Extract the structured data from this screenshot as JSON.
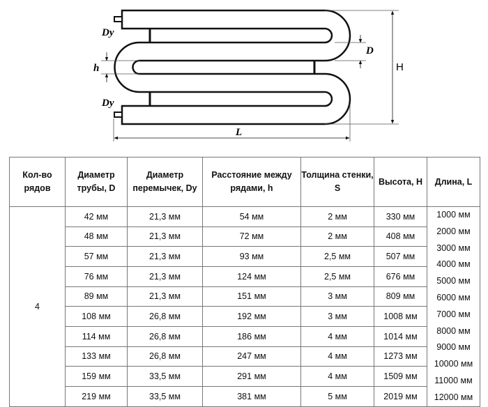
{
  "diagram": {
    "labels": {
      "dy_top": "Dy",
      "dy_bottom": "Dy",
      "h": "h",
      "d": "D",
      "height": "H",
      "length": "L"
    }
  },
  "table": {
    "headers": [
      "Кол-во рядов",
      "Диаметр трубы, D",
      "Диаметр перемычек, Dy",
      "Расстояние между рядами, h",
      "Толщина стенки, S",
      "Высота, H",
      "Длина, L"
    ],
    "rows_count": "4",
    "rows": [
      [
        "42 мм",
        "21,3 мм",
        "54 мм",
        "2 мм",
        "330 мм"
      ],
      [
        "48 мм",
        "21,3 мм",
        "72 мм",
        "2 мм",
        "408 мм"
      ],
      [
        "57 мм",
        "21,3 мм",
        "93 мм",
        "2,5 мм",
        "507 мм"
      ],
      [
        "76 мм",
        "21,3 мм",
        "124 мм",
        "2,5 мм",
        "676 мм"
      ],
      [
        "89 мм",
        "21,3 мм",
        "151 мм",
        "3 мм",
        "809 мм"
      ],
      [
        "108 мм",
        "26,8 мм",
        "192 мм",
        "3 мм",
        "1008 мм"
      ],
      [
        "114 мм",
        "26,8 мм",
        "186 мм",
        "4 мм",
        "1014 мм"
      ],
      [
        "133 мм",
        "26,8 мм",
        "247 мм",
        "4 мм",
        "1273 мм"
      ],
      [
        "159 мм",
        "33,5 мм",
        "291 мм",
        "4 мм",
        "1509 мм"
      ],
      [
        "219 мм",
        "33,5 мм",
        "381 мм",
        "5 мм",
        "2019 мм"
      ]
    ],
    "lengths": [
      "1000 мм",
      "2000 мм",
      "3000 мм",
      "4000 мм",
      "5000 мм",
      "6000 мм",
      "7000 мм",
      "8000 мм",
      "9000 мм",
      "10000 мм",
      "11000 мм",
      "12000 мм"
    ]
  }
}
